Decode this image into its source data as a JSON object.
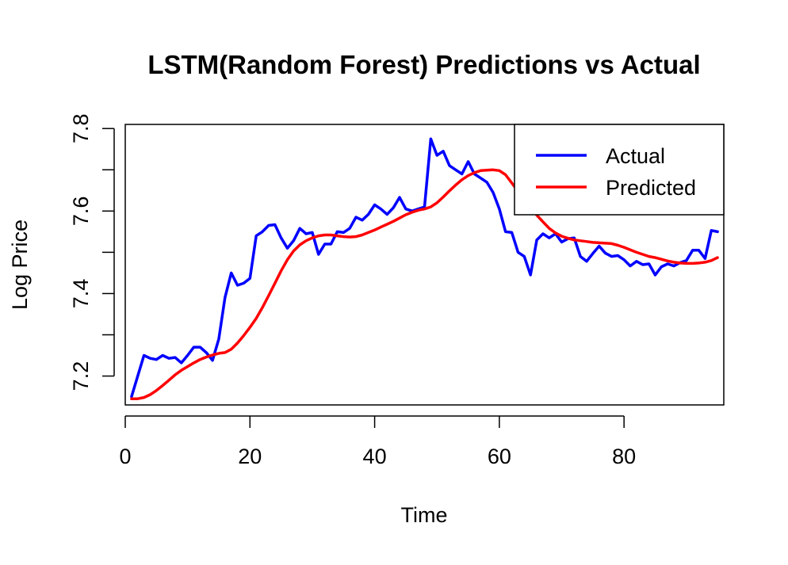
{
  "chart_data": {
    "type": "line",
    "title": "LSTM(Random Forest) Predictions vs Actual",
    "xlabel": "Time",
    "ylabel": "Log Price",
    "xlim": [
      0,
      96
    ],
    "ylim": [
      7.13,
      7.81
    ],
    "x_ticks": [
      0,
      20,
      40,
      60,
      80
    ],
    "x_tick_labels": [
      "0",
      "20",
      "40",
      "60",
      "80"
    ],
    "y_ticks": [
      7.2,
      7.3,
      7.4,
      7.5,
      7.6,
      7.7,
      7.8
    ],
    "y_tick_labels": [
      "7.2",
      "",
      "7.4",
      "",
      "7.6",
      "",
      "7.8"
    ],
    "grid": false,
    "legend_position": "top-right",
    "legend": [
      "Actual",
      "Predicted"
    ],
    "series": [
      {
        "name": "Actual",
        "color": "#0000ff",
        "x": [
          1,
          2,
          3,
          4,
          5,
          6,
          7,
          8,
          9,
          10,
          11,
          12,
          13,
          14,
          15,
          16,
          17,
          18,
          19,
          20,
          21,
          22,
          23,
          24,
          25,
          26,
          27,
          28,
          29,
          30,
          31,
          32,
          33,
          34,
          35,
          36,
          37,
          38,
          39,
          40,
          41,
          42,
          43,
          44,
          45,
          46,
          47,
          48,
          49,
          50,
          51,
          52,
          53,
          54,
          55,
          56,
          57,
          58,
          59,
          60,
          61,
          62,
          63,
          64,
          65,
          66,
          67,
          68,
          69,
          70,
          71,
          72,
          73,
          74,
          75,
          76,
          77,
          78,
          79,
          80,
          81,
          82,
          83,
          84,
          85,
          86,
          87,
          88,
          89,
          90,
          91,
          92,
          93,
          94,
          95
        ],
        "values": [
          7.15,
          7.2,
          7.25,
          7.243,
          7.24,
          7.25,
          7.243,
          7.245,
          7.232,
          7.25,
          7.27,
          7.27,
          7.257,
          7.238,
          7.29,
          7.39,
          7.45,
          7.42,
          7.425,
          7.437,
          7.54,
          7.55,
          7.565,
          7.567,
          7.535,
          7.51,
          7.528,
          7.558,
          7.545,
          7.548,
          7.495,
          7.52,
          7.52,
          7.55,
          7.548,
          7.558,
          7.585,
          7.578,
          7.592,
          7.615,
          7.605,
          7.592,
          7.608,
          7.633,
          7.605,
          7.6,
          7.605,
          7.61,
          7.775,
          7.735,
          7.745,
          7.71,
          7.7,
          7.69,
          7.72,
          7.69,
          7.68,
          7.67,
          7.645,
          7.605,
          7.55,
          7.548,
          7.5,
          7.49,
          7.445,
          7.53,
          7.545,
          7.535,
          7.545,
          7.525,
          7.533,
          7.535,
          7.49,
          7.478,
          7.497,
          7.515,
          7.498,
          7.49,
          7.492,
          7.482,
          7.467,
          7.478,
          7.47,
          7.472,
          7.445,
          7.465,
          7.472,
          7.467,
          7.475,
          7.48,
          7.505,
          7.505,
          7.485,
          7.553,
          7.55
        ]
      },
      {
        "name": "Predicted",
        "color": "#ff0000",
        "x": [
          1,
          2,
          3,
          4,
          5,
          6,
          7,
          8,
          9,
          10,
          11,
          12,
          13,
          14,
          15,
          16,
          17,
          18,
          19,
          20,
          21,
          22,
          23,
          24,
          25,
          26,
          27,
          28,
          29,
          30,
          31,
          32,
          33,
          34,
          35,
          36,
          37,
          38,
          39,
          40,
          41,
          42,
          43,
          44,
          45,
          46,
          47,
          48,
          49,
          50,
          51,
          52,
          53,
          54,
          55,
          56,
          57,
          58,
          59,
          60,
          61,
          62,
          63,
          64,
          65,
          66,
          67,
          68,
          69,
          70,
          71,
          72,
          73,
          74,
          75,
          76,
          77,
          78,
          79,
          80,
          81,
          82,
          83,
          84,
          85,
          86,
          87,
          88,
          89,
          90,
          91,
          92,
          93,
          94,
          95
        ],
        "values": [
          7.145,
          7.145,
          7.148,
          7.155,
          7.165,
          7.177,
          7.19,
          7.203,
          7.214,
          7.223,
          7.232,
          7.24,
          7.246,
          7.251,
          7.255,
          7.257,
          7.265,
          7.28,
          7.298,
          7.318,
          7.34,
          7.366,
          7.395,
          7.425,
          7.455,
          7.482,
          7.503,
          7.518,
          7.528,
          7.535,
          7.54,
          7.542,
          7.542,
          7.54,
          7.538,
          7.537,
          7.538,
          7.542,
          7.548,
          7.554,
          7.561,
          7.568,
          7.575,
          7.583,
          7.591,
          7.597,
          7.602,
          7.605,
          7.61,
          7.62,
          7.634,
          7.649,
          7.663,
          7.676,
          7.686,
          7.693,
          7.698,
          7.699,
          7.7,
          7.698,
          7.688,
          7.668,
          7.648,
          7.628,
          7.608,
          7.59,
          7.574,
          7.558,
          7.547,
          7.539,
          7.534,
          7.53,
          7.528,
          7.526,
          7.524,
          7.523,
          7.522,
          7.521,
          7.517,
          7.512,
          7.506,
          7.5,
          7.495,
          7.49,
          7.487,
          7.483,
          7.479,
          7.476,
          7.474,
          7.473,
          7.473,
          7.474,
          7.476,
          7.48,
          7.487
        ]
      }
    ]
  }
}
